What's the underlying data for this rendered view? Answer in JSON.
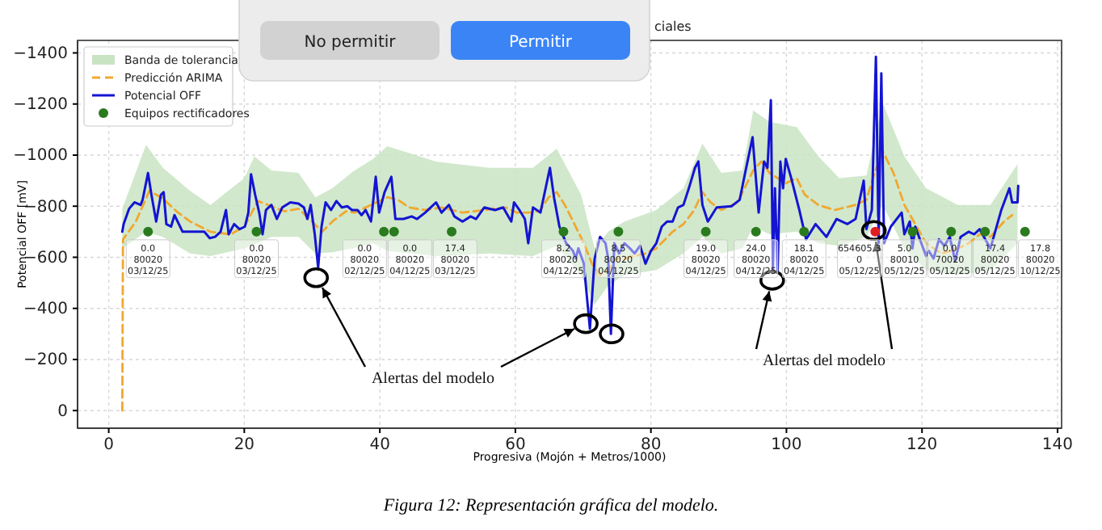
{
  "chart_data": {
    "type": "line",
    "title": "ciales",
    "xlabel": "Progresiva (Mojón + Metros/1000)",
    "ylabel": "Potencial OFF [mV]",
    "xlim": [
      -4.6,
      140.6
    ],
    "ylim": [
      69,
      -1449
    ],
    "xticks": [
      0,
      20,
      40,
      60,
      80,
      100,
      120,
      140
    ],
    "yticks": [
      0,
      {
        "value": -200,
        "label": "−200"
      },
      {
        "value": -400,
        "label": "−400"
      },
      {
        "value": -600,
        "label": "−600"
      },
      {
        "value": -800,
        "label": "−800"
      },
      {
        "value": -1000,
        "label": "−1000"
      },
      {
        "value": -1200,
        "label": "−1200"
      },
      {
        "value": -1400,
        "label": "−1400"
      }
    ],
    "grid": true,
    "legend": "top left",
    "series": [
      {
        "name": "Banda de tolerancia",
        "type": "area",
        "color": "#c9e4c3",
        "x": [
          2,
          5.5,
          8,
          12,
          15,
          20,
          21.5,
          24,
          28,
          30.5,
          33,
          36,
          39,
          41.1,
          48.3,
          56.2,
          62.6,
          66.1,
          69.7,
          71.7,
          73.7,
          76.1,
          80.8,
          84.8,
          87.6,
          90.4,
          93.5,
          95.1,
          97.5,
          101.5,
          104.7,
          107.8,
          111.8,
          114.2,
          117.4,
          120.6,
          125.3,
          130.1,
          134.1
        ],
        "values": [
          null,
          null,
          null,
          null,
          null,
          null,
          null,
          null,
          null,
          null,
          null,
          null,
          null,
          null,
          null,
          null,
          null,
          null,
          null,
          null,
          null,
          null,
          null,
          null,
          null,
          null,
          null,
          null,
          null,
          null,
          null,
          null,
          null,
          null,
          null,
          null,
          null,
          null,
          null
        ],
        "upper": [
          -790,
          -1040,
          -950,
          -860,
          -805,
          -910,
          -995,
          -940,
          -930,
          -835,
          -870,
          -935,
          -985,
          -1035,
          -975,
          -950,
          -950,
          -1025,
          -845,
          -635,
          -700,
          -740,
          -785,
          -870,
          -1045,
          -930,
          -940,
          -1175,
          -1130,
          -1110,
          -995,
          -910,
          -920,
          -1205,
          -995,
          -870,
          -805,
          -805,
          -965
        ],
        "lower": [
          -635,
          -700,
          -680,
          -615,
          -605,
          -635,
          -650,
          -680,
          -680,
          -615,
          -620,
          -635,
          -655,
          -625,
          -605,
          -615,
          -605,
          -645,
          -530,
          -415,
          -490,
          -530,
          -550,
          -615,
          -680,
          -615,
          -635,
          -720,
          -690,
          -700,
          -655,
          -645,
          -680,
          -805,
          -635,
          -550,
          -530,
          -550,
          -655
        ]
      },
      {
        "name": "Predicción ARIMA",
        "type": "line",
        "line_style": "dashed",
        "color": "#f0a830",
        "x": [
          2.0,
          2.1,
          4,
          6,
          8,
          10,
          12,
          15,
          18,
          20,
          22,
          24,
          26,
          28,
          30,
          31.5,
          33,
          35,
          36.3,
          38.7,
          41.1,
          42.7,
          44.3,
          46.7,
          49.1,
          52.2,
          55.4,
          58.6,
          60.2,
          62.6,
          63.7,
          64.9,
          66.1,
          67.3,
          68.9,
          70.1,
          71.3,
          72.5,
          73.7,
          74.9,
          76.1,
          77.6,
          79.2,
          80.8,
          83.2,
          84.8,
          86.4,
          87.6,
          88.8,
          90.4,
          92.8,
          95.1,
          96.3,
          97.5,
          99.9,
          101.5,
          102.7,
          104.7,
          107.1,
          110.2,
          111.8,
          113.0,
          114.2,
          115.8,
          117.4,
          119.0,
          120.6,
          122.9,
          125.3,
          126.9,
          128.5,
          130.1,
          132.1,
          133.3
        ],
        "values": [
          0,
          -670,
          -740,
          -860,
          -830,
          -780,
          -740,
          -700,
          -690,
          -720,
          -820,
          -800,
          -780,
          -790,
          -740,
          -700,
          -740,
          -780,
          -775,
          -805,
          -835,
          -825,
          -795,
          -785,
          -795,
          -775,
          -785,
          -795,
          -775,
          -775,
          -785,
          -835,
          -855,
          -805,
          -720,
          -655,
          -575,
          -530,
          -550,
          -595,
          -595,
          -605,
          -615,
          -635,
          -700,
          -730,
          -785,
          -855,
          -815,
          -785,
          -815,
          -940,
          -975,
          -930,
          -890,
          -910,
          -845,
          -805,
          -785,
          -805,
          -825,
          -930,
          -1015,
          -930,
          -805,
          -730,
          -655,
          -615,
          -635,
          -655,
          -690,
          -680,
          -740,
          -765
        ]
      },
      {
        "name": "Potencial OFF",
        "type": "line",
        "line_style": "solid",
        "color": "#1414d2",
        "x": [
          2.0,
          2.2,
          3.0,
          3.8,
          4.7,
          5.0,
          5.8,
          6.3,
          7.0,
          7.7,
          8.1,
          8.5,
          9.2,
          9.7,
          10.9,
          14.1,
          14.9,
          15.7,
          16.5,
          17.3,
          17.7,
          18.5,
          19.3,
          20.1,
          20.6,
          21.0,
          21.6,
          22.2,
          22.7,
          23.2,
          24.0,
          24.8,
          25.6,
          26.8,
          28.0,
          28.8,
          29.3,
          29.8,
          30.4,
          30.9,
          31.4,
          32.0,
          32.8,
          33.6,
          34.4,
          35.2,
          35.9,
          36.7,
          37.3,
          37.9,
          38.7,
          39.4,
          39.9,
          40.7,
          41.7,
          42.3,
          43.5,
          44.7,
          45.5,
          46.7,
          48.3,
          49.1,
          50.2,
          51.0,
          52.2,
          53.4,
          54.2,
          55.4,
          57.0,
          58.2,
          59.4,
          59.8,
          60.6,
          61.4,
          61.9,
          62.6,
          63.7,
          65.1,
          65.7,
          66.5,
          67.5,
          68.5,
          68.9,
          69.3,
          70.1,
          71.0,
          71.7,
          72.5,
          73.3,
          73.7,
          74.1,
          74.6,
          75.3,
          76.1,
          76.9,
          77.6,
          78.4,
          79.2,
          80.0,
          80.8,
          81.6,
          82.4,
          83.2,
          84.0,
          84.8,
          85.6,
          86.5,
          87.0,
          87.6,
          88.4,
          89.7,
          91.9,
          93.1,
          93.9,
          95.0,
          95.9,
          96.7,
          97.2,
          97.7,
          98.0,
          98.3,
          98.7,
          99.1,
          99.5,
          99.9,
          100.7,
          101.9,
          102.9,
          104.3,
          105.9,
          107.4,
          109.0,
          110.2,
          111.4,
          111.8,
          112.6,
          113.2,
          113.6,
          114.0,
          114.4,
          115.4,
          117.0,
          117.4,
          118.2,
          118.6,
          119.0,
          120.6,
          121.0,
          121.7,
          122.5,
          123.3,
          124.1,
          124.9,
          125.7,
          126.9,
          127.7,
          128.5,
          130.1,
          131.7,
          132.9,
          133.3,
          134.1,
          134.2
        ],
        "values": [
          -700,
          -730,
          -790,
          -815,
          -805,
          -825,
          -930,
          -845,
          -740,
          -845,
          -855,
          -730,
          -720,
          -765,
          -700,
          -700,
          -675,
          -680,
          -700,
          -785,
          -690,
          -730,
          -710,
          -720,
          -775,
          -925,
          -845,
          -775,
          -690,
          -785,
          -805,
          -750,
          -795,
          -815,
          -810,
          -795,
          -750,
          -805,
          -690,
          -560,
          -720,
          -815,
          -785,
          -820,
          -795,
          -800,
          -785,
          -785,
          -765,
          -785,
          -740,
          -915,
          -775,
          -855,
          -915,
          -750,
          -750,
          -760,
          -750,
          -775,
          -815,
          -775,
          -805,
          -760,
          -740,
          -760,
          -750,
          -795,
          -785,
          -795,
          -740,
          -815,
          -785,
          -750,
          -655,
          -795,
          -775,
          -950,
          -835,
          -720,
          -655,
          -625,
          -595,
          -635,
          -575,
          -320,
          -595,
          -680,
          -655,
          -595,
          -300,
          -655,
          -615,
          -655,
          -635,
          -615,
          -645,
          -575,
          -625,
          -655,
          -720,
          -740,
          -740,
          -795,
          -805,
          -870,
          -950,
          -975,
          -805,
          -740,
          -795,
          -800,
          -825,
          -930,
          -1070,
          -775,
          -975,
          -950,
          -1215,
          -550,
          -870,
          -540,
          -975,
          -870,
          -985,
          -910,
          -785,
          -670,
          -730,
          -680,
          -750,
          -730,
          -750,
          -900,
          -710,
          -785,
          -1385,
          -655,
          -1320,
          -655,
          -720,
          -775,
          -690,
          -740,
          -635,
          -720,
          -605,
          -625,
          -595,
          -670,
          -645,
          -680,
          -585,
          -680,
          -700,
          -690,
          -710,
          -635,
          -785,
          -870,
          -815,
          -815,
          -880
        ]
      },
      {
        "name": "Equipos rectificadores",
        "type": "scatter",
        "marker": "circle",
        "color": "#2a7a1e",
        "x": [
          5.8,
          21.8,
          40.6,
          42.1,
          50.6,
          67.1,
          75.2,
          88.1,
          95.5,
          102.6,
          113.1,
          118.6,
          124.3,
          129.3,
          135.2
        ],
        "values": [
          -700,
          -700,
          -700,
          -700,
          -700,
          -700,
          -700,
          -700,
          -700,
          -700,
          -700,
          -700,
          -700,
          -700,
          -700
        ],
        "colors": [
          "#2a7a1e",
          "#2a7a1e",
          "#2a7a1e",
          "#2a7a1e",
          "#2a7a1e",
          "#2a7a1e",
          "#2a7a1e",
          "#2a7a1e",
          "#2a7a1e",
          "#2a7a1e",
          "#e02020",
          "#2a7a1e",
          "#2a7a1e",
          "#2a7a1e",
          "#2a7a1e"
        ],
        "value_labels": [
          "0.0\n80020\n03/12/25",
          "0.0\n80020\n03/12/25",
          "0.0\n80020\n02/12/25",
          "0.0\n80020\n04/12/25",
          "17.4\n80020\n03/12/25",
          "8.2\n80020\n04/12/25",
          "8.5\n80020\n04/12/25",
          "19.0\n80020\n04/12/25",
          "24.0\n80020\n04/12/25",
          "18.1\n80020\n04/12/25",
          "654605.3\n0\n05/12/25",
          "5.0\n80010\n05/12/25",
          "0.0\n70020\n05/12/25",
          "17.4\n80020\n05/12/25",
          "17.8\n80020\n10/12/25"
        ]
      },
      {
        "type": "scatter",
        "marker": "circle",
        "color": "#000000",
        "x": [
          30.6,
          70.4,
          74.2,
          97.9,
          112.9
        ],
        "values": [
          -520,
          -340,
          -300,
          -510,
          -705
        ]
      }
    ],
    "annotations": [
      {
        "text": "Alertas del modelo",
        "x": 30.6,
        "y": -520
      },
      {
        "text": "Alertas del modelo",
        "x": 112.9,
        "y": -705
      },
      "No permitir",
      "Permitir",
      "Figura 12: Representación gráfica del modelo."
    ]
  }
}
